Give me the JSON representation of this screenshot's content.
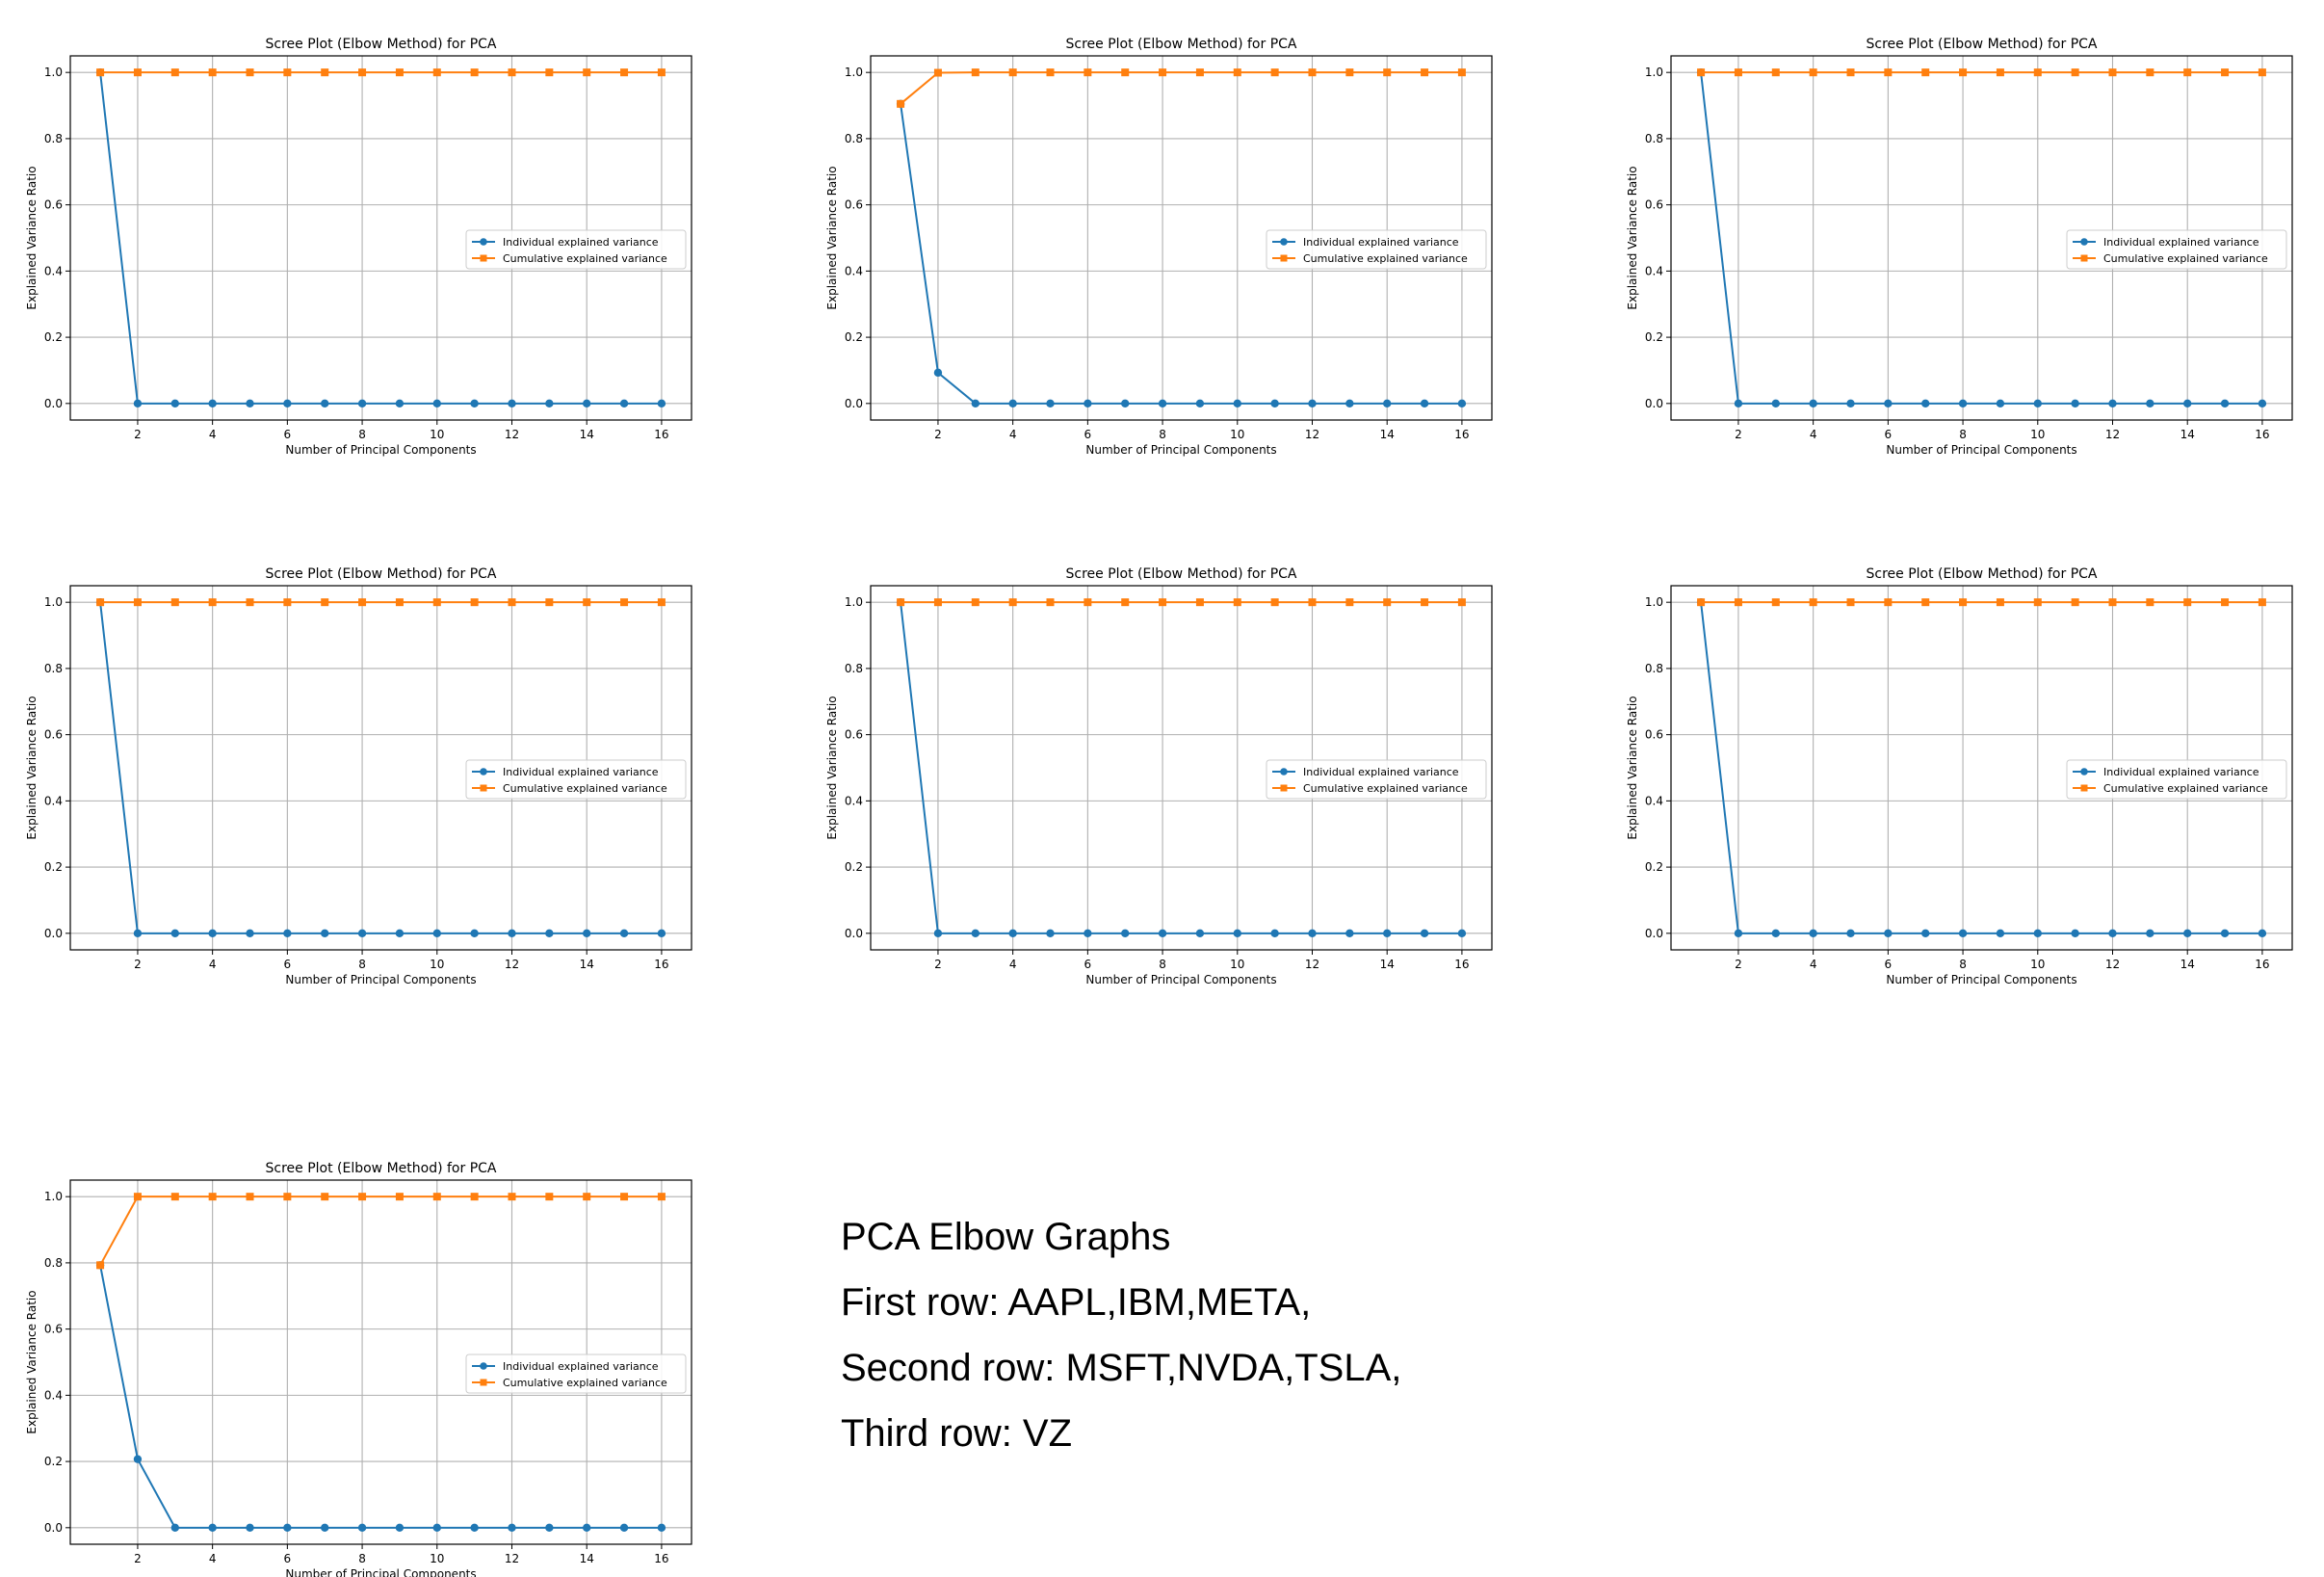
{
  "chart_data": [
    {
      "type": "line",
      "title": "Scree Plot (Elbow Method) for PCA",
      "xlabel": "Number of Principal Components",
      "ylabel": "Explained Variance Ratio",
      "x": [
        1,
        2,
        3,
        4,
        5,
        6,
        7,
        8,
        9,
        10,
        11,
        12,
        13,
        14,
        15,
        16
      ],
      "xlim": [
        0.2,
        16.8
      ],
      "ylim": [
        -0.05,
        1.05
      ],
      "xticks": [
        "2",
        "4",
        "6",
        "8",
        "10",
        "12",
        "14",
        "16"
      ],
      "yticks": [
        "0.0",
        "0.2",
        "0.4",
        "0.6",
        "0.8",
        "1.0"
      ],
      "grid": true,
      "legend_position": "center-right",
      "series": [
        {
          "name": "Individual explained variance",
          "marker": "circle",
          "color": "#1f77b4",
          "values": [
            1.0,
            0,
            0,
            0,
            0,
            0,
            0,
            0,
            0,
            0,
            0,
            0,
            0,
            0,
            0,
            0
          ]
        },
        {
          "name": "Cumulative explained variance",
          "marker": "square",
          "color": "#ff7f0e",
          "values": [
            1.0,
            1,
            1,
            1,
            1,
            1,
            1,
            1,
            1,
            1,
            1,
            1,
            1,
            1,
            1,
            1
          ]
        }
      ]
    },
    {
      "type": "line",
      "title": "Scree Plot (Elbow Method) for PCA",
      "xlabel": "Number of Principal Components",
      "ylabel": "Explained Variance Ratio",
      "x": [
        1,
        2,
        3,
        4,
        5,
        6,
        7,
        8,
        9,
        10,
        11,
        12,
        13,
        14,
        15,
        16
      ],
      "xlim": [
        0.2,
        16.8
      ],
      "ylim": [
        -0.05,
        1.05
      ],
      "xticks": [
        "2",
        "4",
        "6",
        "8",
        "10",
        "12",
        "14",
        "16"
      ],
      "yticks": [
        "0.0",
        "0.2",
        "0.4",
        "0.6",
        "0.8",
        "1.0"
      ],
      "grid": true,
      "legend_position": "center-right",
      "series": [
        {
          "name": "Individual explained variance",
          "marker": "circle",
          "color": "#1f77b4",
          "values": [
            0.905,
            0.093,
            0,
            0,
            0,
            0,
            0,
            0,
            0,
            0,
            0,
            0,
            0,
            0,
            0,
            0
          ]
        },
        {
          "name": "Cumulative explained variance",
          "marker": "square",
          "color": "#ff7f0e",
          "values": [
            0.905,
            0.999,
            1,
            1,
            1,
            1,
            1,
            1,
            1,
            1,
            1,
            1,
            1,
            1,
            1,
            1
          ]
        }
      ]
    },
    {
      "type": "line",
      "title": "Scree Plot (Elbow Method) for PCA",
      "xlabel": "Number of Principal Components",
      "ylabel": "Explained Variance Ratio",
      "x": [
        1,
        2,
        3,
        4,
        5,
        6,
        7,
        8,
        9,
        10,
        11,
        12,
        13,
        14,
        15,
        16
      ],
      "xlim": [
        0.2,
        16.8
      ],
      "ylim": [
        -0.05,
        1.05
      ],
      "xticks": [
        "2",
        "4",
        "6",
        "8",
        "10",
        "12",
        "14",
        "16"
      ],
      "yticks": [
        "0.0",
        "0.2",
        "0.4",
        "0.6",
        "0.8",
        "1.0"
      ],
      "grid": true,
      "legend_position": "center-right",
      "series": [
        {
          "name": "Individual explained variance",
          "marker": "circle",
          "color": "#1f77b4",
          "values": [
            1.0,
            0,
            0,
            0,
            0,
            0,
            0,
            0,
            0,
            0,
            0,
            0,
            0,
            0,
            0,
            0
          ]
        },
        {
          "name": "Cumulative explained variance",
          "marker": "square",
          "color": "#ff7f0e",
          "values": [
            1.0,
            1,
            1,
            1,
            1,
            1,
            1,
            1,
            1,
            1,
            1,
            1,
            1,
            1,
            1,
            1
          ]
        }
      ]
    },
    {
      "type": "line",
      "title": "Scree Plot (Elbow Method) for PCA",
      "xlabel": "Number of Principal Components",
      "ylabel": "Explained Variance Ratio",
      "x": [
        1,
        2,
        3,
        4,
        5,
        6,
        7,
        8,
        9,
        10,
        11,
        12,
        13,
        14,
        15,
        16
      ],
      "xlim": [
        0.2,
        16.8
      ],
      "ylim": [
        -0.05,
        1.05
      ],
      "xticks": [
        "2",
        "4",
        "6",
        "8",
        "10",
        "12",
        "14",
        "16"
      ],
      "yticks": [
        "0.0",
        "0.2",
        "0.4",
        "0.6",
        "0.8",
        "1.0"
      ],
      "grid": true,
      "legend_position": "center-right",
      "series": [
        {
          "name": "Individual explained variance",
          "marker": "circle",
          "color": "#1f77b4",
          "values": [
            1.0,
            0,
            0,
            0,
            0,
            0,
            0,
            0,
            0,
            0,
            0,
            0,
            0,
            0,
            0,
            0
          ]
        },
        {
          "name": "Cumulative explained variance",
          "marker": "square",
          "color": "#ff7f0e",
          "values": [
            1.0,
            1,
            1,
            1,
            1,
            1,
            1,
            1,
            1,
            1,
            1,
            1,
            1,
            1,
            1,
            1
          ]
        }
      ]
    },
    {
      "type": "line",
      "title": "Scree Plot (Elbow Method) for PCA",
      "xlabel": "Number of Principal Components",
      "ylabel": "Explained Variance Ratio",
      "x": [
        1,
        2,
        3,
        4,
        5,
        6,
        7,
        8,
        9,
        10,
        11,
        12,
        13,
        14,
        15,
        16
      ],
      "xlim": [
        0.2,
        16.8
      ],
      "ylim": [
        -0.05,
        1.05
      ],
      "xticks": [
        "2",
        "4",
        "6",
        "8",
        "10",
        "12",
        "14",
        "16"
      ],
      "yticks": [
        "0.0",
        "0.2",
        "0.4",
        "0.6",
        "0.8",
        "1.0"
      ],
      "grid": true,
      "legend_position": "center-right",
      "series": [
        {
          "name": "Individual explained variance",
          "marker": "circle",
          "color": "#1f77b4",
          "values": [
            1.0,
            0,
            0,
            0,
            0,
            0,
            0,
            0,
            0,
            0,
            0,
            0,
            0,
            0,
            0,
            0
          ]
        },
        {
          "name": "Cumulative explained variance",
          "marker": "square",
          "color": "#ff7f0e",
          "values": [
            1.0,
            1,
            1,
            1,
            1,
            1,
            1,
            1,
            1,
            1,
            1,
            1,
            1,
            1,
            1,
            1
          ]
        }
      ]
    },
    {
      "type": "line",
      "title": "Scree Plot (Elbow Method) for PCA",
      "xlabel": "Number of Principal Components",
      "ylabel": "Explained Variance Ratio",
      "x": [
        1,
        2,
        3,
        4,
        5,
        6,
        7,
        8,
        9,
        10,
        11,
        12,
        13,
        14,
        15,
        16
      ],
      "xlim": [
        0.2,
        16.8
      ],
      "ylim": [
        -0.05,
        1.05
      ],
      "xticks": [
        "2",
        "4",
        "6",
        "8",
        "10",
        "12",
        "14",
        "16"
      ],
      "yticks": [
        "0.0",
        "0.2",
        "0.4",
        "0.6",
        "0.8",
        "1.0"
      ],
      "grid": true,
      "legend_position": "center-right",
      "series": [
        {
          "name": "Individual explained variance",
          "marker": "circle",
          "color": "#1f77b4",
          "values": [
            1.0,
            0,
            0,
            0,
            0,
            0,
            0,
            0,
            0,
            0,
            0,
            0,
            0,
            0,
            0,
            0
          ]
        },
        {
          "name": "Cumulative explained variance",
          "marker": "square",
          "color": "#ff7f0e",
          "values": [
            1.0,
            1,
            1,
            1,
            1,
            1,
            1,
            1,
            1,
            1,
            1,
            1,
            1,
            1,
            1,
            1
          ]
        }
      ]
    },
    {
      "type": "line",
      "title": "Scree Plot (Elbow Method) for PCA",
      "xlabel": "Number of Principal Components",
      "ylabel": "Explained Variance Ratio",
      "x": [
        1,
        2,
        3,
        4,
        5,
        6,
        7,
        8,
        9,
        10,
        11,
        12,
        13,
        14,
        15,
        16
      ],
      "xlim": [
        0.2,
        16.8
      ],
      "ylim": [
        -0.05,
        1.05
      ],
      "xticks": [
        "2",
        "4",
        "6",
        "8",
        "10",
        "12",
        "14",
        "16"
      ],
      "yticks": [
        "0.0",
        "0.2",
        "0.4",
        "0.6",
        "0.8",
        "1.0"
      ],
      "grid": true,
      "legend_position": "center-right",
      "series": [
        {
          "name": "Individual explained variance",
          "marker": "circle",
          "color": "#1f77b4",
          "values": [
            0.793,
            0.207,
            0,
            0,
            0,
            0,
            0,
            0,
            0,
            0,
            0,
            0,
            0,
            0,
            0,
            0
          ]
        },
        {
          "name": "Cumulative explained variance",
          "marker": "square",
          "color": "#ff7f0e",
          "values": [
            0.793,
            1,
            1,
            1,
            1,
            1,
            1,
            1,
            1,
            1,
            1,
            1,
            1,
            1,
            1,
            1
          ]
        }
      ]
    }
  ],
  "notes": {
    "title": "PCA Elbow Graphs",
    "row1": "First row: AAPL,IBM,META,",
    "row2": "Second row: MSFT,NVDA,TSLA,",
    "row3": "Third row: VZ"
  }
}
